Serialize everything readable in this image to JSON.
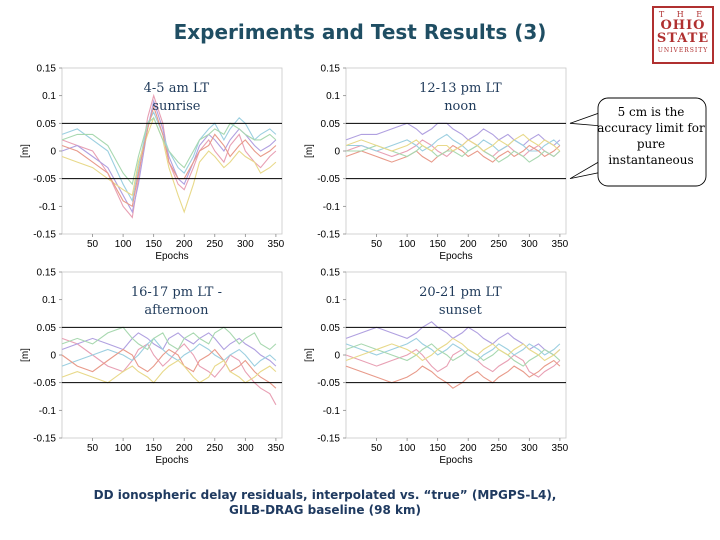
{
  "slide": {
    "title": "Experiments and Test Results (3)",
    "caption_line1": "DD ionospheric delay residuals, interpolated vs. “true” (MPGPS-L4),",
    "caption_line2": "GILB-DRAG baseline (98 km)",
    "callout": "5 cm is the accuracy limit for pure instantaneous",
    "logo": {
      "the": "T H E",
      "line1": "OHIO",
      "line2": "STATE",
      "line3": "UNIVERSITY",
      "color": "#b03030"
    }
  },
  "chart_data": [
    {
      "type": "line",
      "label_line1": "4-5 am LT",
      "label_line2": "sunrise",
      "xlabel": "Epochs",
      "ylabel": "[m]",
      "xlim": [
        0,
        360
      ],
      "ylim": [
        -0.15,
        0.15
      ],
      "xticks": [
        50,
        100,
        150,
        200,
        250,
        300,
        350
      ],
      "yticks": [
        0.15,
        0.1,
        0.05,
        0,
        -0.05,
        -0.1,
        -0.15
      ],
      "ytick_labels": [
        "0.15",
        "0.1",
        "0.05",
        "0",
        "-0.05",
        "-0.1",
        "-0.15"
      ],
      "reference_lines": [
        0.05,
        -0.05
      ],
      "x": [
        0,
        25,
        50,
        75,
        100,
        115,
        125,
        140,
        150,
        165,
        175,
        190,
        200,
        215,
        225,
        240,
        250,
        265,
        275,
        290,
        300,
        315,
        325,
        340,
        350
      ],
      "series": [
        {
          "color": "#e8a0b4",
          "values": [
            0.02,
            0.01,
            0.0,
            -0.04,
            -0.1,
            -0.12,
            -0.05,
            0.06,
            0.1,
            0.05,
            -0.02,
            -0.06,
            -0.07,
            -0.03,
            0.0,
            0.02,
            0.0,
            -0.02,
            0.01,
            0.03,
            0.0,
            -0.02,
            -0.03,
            -0.01,
            0.0
          ]
        },
        {
          "color": "#b0a0e0",
          "values": [
            0.0,
            0.01,
            -0.01,
            -0.03,
            -0.08,
            -0.11,
            -0.06,
            0.04,
            0.09,
            0.04,
            -0.01,
            -0.05,
            -0.06,
            -0.02,
            0.01,
            0.03,
            0.02,
            0.0,
            0.02,
            0.04,
            0.03,
            0.01,
            0.0,
            0.01,
            0.02
          ]
        },
        {
          "color": "#9ccfe0",
          "values": [
            0.03,
            0.04,
            0.02,
            0.0,
            -0.06,
            -0.09,
            -0.03,
            0.05,
            0.07,
            0.03,
            0.0,
            -0.03,
            -0.04,
            -0.01,
            0.02,
            0.04,
            0.05,
            0.02,
            0.04,
            0.06,
            0.05,
            0.02,
            0.03,
            0.04,
            0.03
          ]
        },
        {
          "color": "#e8d98a",
          "values": [
            -0.01,
            -0.02,
            -0.03,
            -0.05,
            -0.07,
            -0.08,
            -0.02,
            0.03,
            0.06,
            0.02,
            -0.03,
            -0.08,
            -0.11,
            -0.06,
            -0.02,
            0.0,
            -0.01,
            -0.03,
            -0.02,
            0.0,
            -0.01,
            -0.02,
            -0.04,
            -0.03,
            -0.02
          ]
        },
        {
          "color": "#e89a8a",
          "values": [
            0.01,
            0.0,
            -0.02,
            -0.04,
            -0.09,
            -0.1,
            -0.04,
            0.04,
            0.08,
            0.03,
            -0.02,
            -0.05,
            -0.05,
            -0.02,
            0.0,
            0.01,
            0.03,
            0.01,
            -0.01,
            0.01,
            0.02,
            0.0,
            -0.01,
            0.0,
            0.01
          ]
        },
        {
          "color": "#a8d8b0",
          "values": [
            0.02,
            0.03,
            0.03,
            0.01,
            -0.04,
            -0.06,
            -0.01,
            0.05,
            0.06,
            0.02,
            0.0,
            -0.02,
            -0.03,
            0.0,
            0.02,
            0.03,
            0.04,
            0.03,
            0.05,
            0.04,
            0.03,
            0.02,
            0.02,
            0.03,
            0.02
          ]
        }
      ]
    },
    {
      "type": "line",
      "label_line1": "12-13 pm LT",
      "label_line2": "noon",
      "xlabel": "Epochs",
      "ylabel": "[m]",
      "xlim": [
        0,
        360
      ],
      "ylim": [
        -0.15,
        0.15
      ],
      "xticks": [
        50,
        100,
        150,
        200,
        250,
        300,
        350
      ],
      "yticks": [
        0.15,
        0.1,
        0.05,
        0,
        -0.05,
        -0.1,
        -0.15
      ],
      "ytick_labels": [
        "0.15",
        "0.1",
        "0.05",
        "0",
        "-0.05",
        "-0.1",
        "-0.15"
      ],
      "reference_lines": [
        0.05,
        -0.05
      ],
      "x": [
        0,
        25,
        50,
        75,
        100,
        115,
        125,
        140,
        150,
        165,
        175,
        190,
        200,
        215,
        225,
        240,
        250,
        265,
        275,
        290,
        300,
        315,
        325,
        340,
        350
      ],
      "series": [
        {
          "color": "#b0a0e0",
          "values": [
            0.02,
            0.03,
            0.03,
            0.04,
            0.05,
            0.04,
            0.03,
            0.04,
            0.05,
            0.05,
            0.04,
            0.03,
            0.02,
            0.03,
            0.04,
            0.03,
            0.02,
            0.03,
            0.02,
            0.01,
            0.02,
            0.03,
            0.02,
            0.01,
            0.02
          ]
        },
        {
          "color": "#e8a0b4",
          "values": [
            0.0,
            0.01,
            0.0,
            -0.01,
            0.0,
            0.01,
            0.02,
            0.01,
            0.0,
            -0.01,
            0.0,
            0.01,
            0.02,
            0.01,
            0.0,
            -0.01,
            0.0,
            0.01,
            0.0,
            -0.01,
            0.0,
            0.01,
            0.0,
            -0.01,
            0.0
          ]
        },
        {
          "color": "#9ccfe0",
          "values": [
            0.01,
            0.01,
            0.0,
            0.01,
            0.02,
            0.01,
            0.0,
            0.01,
            0.02,
            0.03,
            0.02,
            0.01,
            0.0,
            0.01,
            0.02,
            0.01,
            0.0,
            0.01,
            0.02,
            0.01,
            0.0,
            0.0,
            0.01,
            0.02,
            0.01
          ]
        },
        {
          "color": "#e89a8a",
          "values": [
            -0.01,
            0.0,
            -0.01,
            -0.02,
            -0.01,
            0.0,
            -0.01,
            -0.02,
            -0.01,
            0.0,
            0.01,
            0.0,
            -0.01,
            0.0,
            -0.01,
            -0.02,
            -0.01,
            0.0,
            -0.01,
            0.0,
            0.01,
            0.0,
            -0.01,
            0.0,
            0.01
          ]
        },
        {
          "color": "#a8d8b0",
          "values": [
            0.0,
            0.0,
            0.01,
            0.0,
            -0.01,
            0.0,
            0.01,
            0.0,
            -0.01,
            0.0,
            0.0,
            -0.01,
            0.0,
            0.01,
            0.0,
            -0.01,
            -0.02,
            -0.01,
            0.0,
            -0.01,
            -0.02,
            -0.01,
            0.0,
            -0.01,
            0.0
          ]
        },
        {
          "color": "#e8d98a",
          "values": [
            0.01,
            0.02,
            0.01,
            0.0,
            0.01,
            0.02,
            0.01,
            0.0,
            0.01,
            0.01,
            0.0,
            0.01,
            0.02,
            0.01,
            0.0,
            0.01,
            0.02,
            0.01,
            0.02,
            0.03,
            0.02,
            0.01,
            0.02,
            0.01,
            0.0
          ]
        }
      ]
    },
    {
      "type": "line",
      "label_line1": "16-17 pm LT -",
      "label_line2": "afternoon",
      "xlabel": "Epochs",
      "ylabel": "[m]",
      "xlim": [
        0,
        360
      ],
      "ylim": [
        -0.15,
        0.15
      ],
      "xticks": [
        50,
        100,
        150,
        200,
        250,
        300,
        350
      ],
      "yticks": [
        0.15,
        0.1,
        0.05,
        0,
        -0.05,
        -0.1,
        -0.15
      ],
      "ytick_labels": [
        "0.15",
        "0.1",
        "0.05",
        "0",
        "-0.05",
        "-0.1",
        "-0.15"
      ],
      "reference_lines": [
        0.05,
        -0.05
      ],
      "x": [
        0,
        25,
        50,
        75,
        100,
        115,
        125,
        140,
        150,
        165,
        175,
        190,
        200,
        215,
        225,
        240,
        250,
        265,
        275,
        290,
        300,
        315,
        325,
        340,
        350
      ],
      "series": [
        {
          "color": "#e8a0b4",
          "values": [
            0.03,
            0.02,
            0.0,
            -0.02,
            -0.03,
            -0.01,
            0.01,
            0.02,
            0.0,
            -0.02,
            -0.01,
            0.01,
            0.02,
            0.0,
            -0.02,
            -0.03,
            -0.04,
            -0.02,
            0.0,
            -0.01,
            -0.03,
            -0.05,
            -0.06,
            -0.07,
            -0.09
          ]
        },
        {
          "color": "#b0a0e0",
          "values": [
            0.01,
            0.02,
            0.03,
            0.02,
            0.01,
            0.03,
            0.04,
            0.03,
            0.02,
            0.01,
            0.03,
            0.04,
            0.03,
            0.02,
            0.03,
            0.04,
            0.03,
            0.01,
            0.02,
            0.03,
            0.02,
            0.01,
            0.0,
            -0.01,
            -0.02
          ]
        },
        {
          "color": "#9ccfe0",
          "values": [
            -0.02,
            -0.01,
            0.0,
            0.01,
            0.0,
            -0.01,
            0.0,
            0.02,
            0.03,
            0.01,
            0.0,
            -0.01,
            0.0,
            0.01,
            0.02,
            0.01,
            0.0,
            -0.01,
            0.0,
            0.01,
            0.0,
            -0.02,
            -0.01,
            0.0,
            -0.01
          ]
        },
        {
          "color": "#e89a8a",
          "values": [
            0.0,
            -0.02,
            -0.03,
            -0.01,
            0.01,
            0.0,
            -0.02,
            -0.03,
            -0.02,
            0.0,
            0.01,
            0.0,
            -0.02,
            -0.03,
            -0.01,
            0.0,
            0.01,
            -0.01,
            -0.03,
            -0.02,
            -0.01,
            -0.03,
            -0.04,
            -0.05,
            -0.06
          ]
        },
        {
          "color": "#a8d8b0",
          "values": [
            0.02,
            0.03,
            0.02,
            0.04,
            0.05,
            0.03,
            0.02,
            0.01,
            0.03,
            0.04,
            0.02,
            0.01,
            0.03,
            0.04,
            0.03,
            0.02,
            0.04,
            0.05,
            0.04,
            0.02,
            0.03,
            0.04,
            0.02,
            0.01,
            0.02
          ]
        },
        {
          "color": "#e8d98a",
          "values": [
            -0.04,
            -0.03,
            -0.04,
            -0.05,
            -0.03,
            -0.02,
            -0.03,
            -0.04,
            -0.05,
            -0.03,
            -0.02,
            -0.01,
            -0.02,
            -0.04,
            -0.05,
            -0.04,
            -0.02,
            -0.01,
            -0.03,
            -0.04,
            -0.05,
            -0.04,
            -0.03,
            -0.02,
            -0.03
          ]
        }
      ]
    },
    {
      "type": "line",
      "label_line1": "20-21 pm LT",
      "label_line2": "sunset",
      "xlabel": "Epochs",
      "ylabel": "[m]",
      "xlim": [
        0,
        360
      ],
      "ylim": [
        -0.15,
        0.15
      ],
      "xticks": [
        50,
        100,
        150,
        200,
        250,
        300,
        350
      ],
      "yticks": [
        0.15,
        0.1,
        0.05,
        0,
        -0.05,
        -0.1,
        -0.15
      ],
      "ytick_labels": [
        "0.15",
        "0.1",
        "0.05",
        "0",
        "-0.05",
        "-0.1",
        "-0.15"
      ],
      "reference_lines": [
        0.05,
        -0.05
      ],
      "x": [
        0,
        25,
        50,
        75,
        100,
        115,
        125,
        140,
        150,
        165,
        175,
        190,
        200,
        215,
        225,
        240,
        250,
        265,
        275,
        290,
        300,
        315,
        325,
        340,
        350
      ],
      "series": [
        {
          "color": "#b0a0e0",
          "values": [
            0.03,
            0.04,
            0.05,
            0.04,
            0.03,
            0.04,
            0.05,
            0.06,
            0.05,
            0.04,
            0.03,
            0.04,
            0.05,
            0.04,
            0.03,
            0.02,
            0.03,
            0.04,
            0.03,
            0.02,
            0.01,
            0.02,
            0.01,
            0.0,
            0.01
          ]
        },
        {
          "color": "#e8a0b4",
          "values": [
            0.0,
            -0.01,
            -0.02,
            -0.01,
            0.0,
            0.01,
            0.0,
            -0.02,
            -0.03,
            -0.02,
            0.0,
            0.01,
            0.0,
            -0.01,
            -0.02,
            -0.03,
            -0.02,
            -0.01,
            0.0,
            -0.01,
            -0.03,
            -0.04,
            -0.03,
            -0.02,
            -0.01
          ]
        },
        {
          "color": "#9ccfe0",
          "values": [
            0.02,
            0.01,
            0.0,
            0.01,
            0.02,
            0.03,
            0.02,
            0.01,
            0.0,
            0.01,
            0.02,
            0.01,
            0.0,
            -0.01,
            0.0,
            0.01,
            0.02,
            0.01,
            0.0,
            0.01,
            0.02,
            0.01,
            0.0,
            0.01,
            0.02
          ]
        },
        {
          "color": "#e89a8a",
          "values": [
            -0.02,
            -0.03,
            -0.04,
            -0.05,
            -0.04,
            -0.03,
            -0.02,
            -0.03,
            -0.04,
            -0.05,
            -0.06,
            -0.05,
            -0.04,
            -0.03,
            -0.04,
            -0.05,
            -0.04,
            -0.03,
            -0.02,
            -0.03,
            -0.04,
            -0.03,
            -0.02,
            -0.01,
            -0.02
          ]
        },
        {
          "color": "#a8d8b0",
          "values": [
            0.01,
            0.02,
            0.01,
            0.0,
            -0.01,
            0.0,
            0.01,
            0.02,
            0.01,
            0.0,
            -0.01,
            0.0,
            0.01,
            0.0,
            -0.01,
            0.0,
            0.01,
            0.0,
            -0.01,
            -0.02,
            -0.01,
            0.0,
            0.01,
            0.0,
            -0.01
          ]
        },
        {
          "color": "#e8d98a",
          "values": [
            -0.01,
            0.0,
            0.01,
            0.02,
            0.01,
            0.0,
            -0.01,
            0.0,
            0.01,
            0.02,
            0.03,
            0.02,
            0.01,
            0.0,
            0.01,
            0.02,
            0.01,
            0.0,
            0.01,
            0.02,
            0.01,
            0.0,
            -0.01,
            0.0,
            0.01
          ]
        }
      ]
    }
  ]
}
